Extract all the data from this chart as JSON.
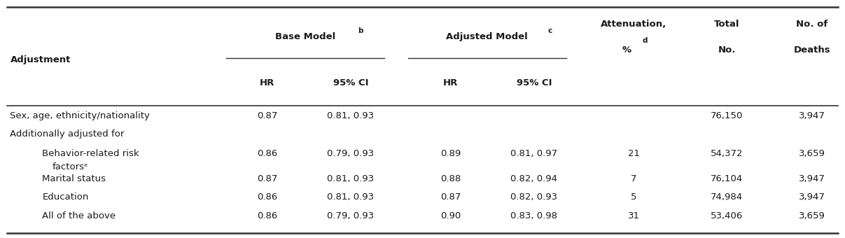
{
  "bg_color": "#ffffff",
  "figsize": [
    12.07,
    3.4
  ],
  "dpi": 100,
  "col_positions": {
    "adjustment": 0.012,
    "base_hr": 0.298,
    "base_ci": 0.39,
    "adj_hr": 0.515,
    "adj_ci": 0.607,
    "atten": 0.728,
    "total": 0.838,
    "deaths": 0.943
  },
  "header": {
    "base_model_label": "Base Model",
    "base_model_super": "b",
    "adj_model_label": "Adjusted Model",
    "adj_model_super": "c",
    "attenuation_line1": "Attenuation,",
    "attenuation_line2": "%",
    "attenuation_super": "d",
    "total_line1": "Total",
    "total_line2": "No.",
    "noofdeaths_line1": "No. of",
    "noofdeaths_line2": "Deaths",
    "adjustment_label": "Adjustment",
    "hr_label": "HR",
    "ci_label": "95% CI",
    "base_span": [
      0.268,
      0.455
    ],
    "adj_span": [
      0.483,
      0.67
    ]
  },
  "rows": [
    {
      "label": "Sex, age, ethnicity/nationality",
      "indent": false,
      "label2": null,
      "base_hr": "0.87",
      "base_ci": "0.81, 0.93",
      "adj_hr": "",
      "adj_ci": "",
      "atten": "",
      "total": "76,150",
      "deaths": "3,947",
      "italic": false,
      "bold": false
    },
    {
      "label": "Additionally adjusted for",
      "indent": false,
      "label2": null,
      "base_hr": "",
      "base_ci": "",
      "adj_hr": "",
      "adj_ci": "",
      "atten": "",
      "total": "",
      "deaths": "",
      "italic": false,
      "bold": false
    },
    {
      "label": "Behavior-related risk",
      "indent": true,
      "label2": "factorsᵉ",
      "base_hr": "0.86",
      "base_ci": "0.79, 0.93",
      "adj_hr": "0.89",
      "adj_ci": "0.81, 0.97",
      "atten": "21",
      "total": "54,372",
      "deaths": "3,659",
      "italic": false,
      "bold": false
    },
    {
      "label": "Marital status",
      "indent": true,
      "label2": null,
      "base_hr": "0.87",
      "base_ci": "0.81, 0.93",
      "adj_hr": "0.88",
      "adj_ci": "0.82, 0.94",
      "atten": "7",
      "total": "76,104",
      "deaths": "3,947",
      "italic": false,
      "bold": false
    },
    {
      "label": "Education",
      "indent": true,
      "label2": null,
      "base_hr": "0.86",
      "base_ci": "0.81, 0.93",
      "adj_hr": "0.87",
      "adj_ci": "0.82, 0.93",
      "atten": "5",
      "total": "74,984",
      "deaths": "3,947",
      "italic": false,
      "bold": false
    },
    {
      "label": "All of the above",
      "indent": true,
      "label2": null,
      "base_hr": "0.86",
      "base_ci": "0.79, 0.93",
      "adj_hr": "0.90",
      "adj_ci": "0.83, 0.98",
      "atten": "31",
      "total": "53,406",
      "deaths": "3,659",
      "italic": false,
      "bold": false
    }
  ],
  "font_size": 9.5,
  "header_font_size": 9.5,
  "line_color": "#333333",
  "text_color": "#1a1a1a"
}
